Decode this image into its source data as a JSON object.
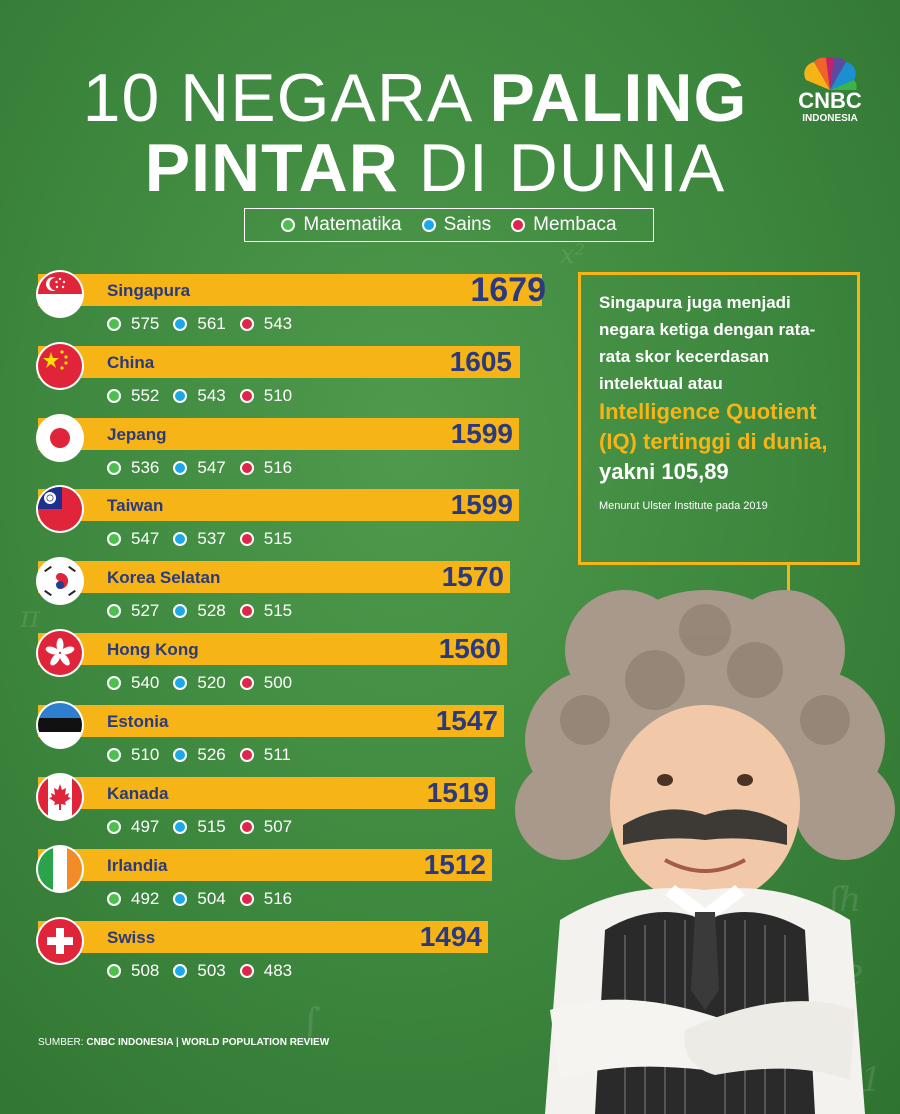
{
  "title": {
    "line1_thin": "10 NEGARA",
    "line1_bold": "PALING",
    "line2_bold": "PINTAR",
    "line2_thin": "DI DUNIA"
  },
  "logo": {
    "brand": "CNBC",
    "sub": "INDONESIA"
  },
  "legend": [
    {
      "label": "Matematika",
      "color": "#4cc04e"
    },
    {
      "label": "Sains",
      "color": "#1ba8e6"
    },
    {
      "label": "Membaca",
      "color": "#e0244a"
    }
  ],
  "countries": [
    {
      "name": "Singapura",
      "total": "1679",
      "math": "575",
      "science": "561",
      "reading": "543",
      "flag": "singapore-flag"
    },
    {
      "name": "China",
      "total": "1605",
      "math": "552",
      "science": "543",
      "reading": "510",
      "flag": "china-flag"
    },
    {
      "name": "Jepang",
      "total": "1599",
      "math": "536",
      "science": "547",
      "reading": "516",
      "flag": "japan-flag"
    },
    {
      "name": "Taiwan",
      "total": "1599",
      "math": "547",
      "science": "537",
      "reading": "515",
      "flag": "taiwan-flag"
    },
    {
      "name": "Korea Selatan",
      "total": "1570",
      "math": "527",
      "science": "528",
      "reading": "515",
      "flag": "south-korea-flag"
    },
    {
      "name": "Hong Kong",
      "total": "1560",
      "math": "540",
      "science": "520",
      "reading": "500",
      "flag": "hong-kong-flag"
    },
    {
      "name": "Estonia",
      "total": "1547",
      "math": "510",
      "science": "526",
      "reading": "511",
      "flag": "estonia-flag"
    },
    {
      "name": "Kanada",
      "total": "1519",
      "math": "497",
      "science": "515",
      "reading": "507",
      "flag": "canada-flag"
    },
    {
      "name": "Irlandia",
      "total": "1512",
      "math": "492",
      "science": "504",
      "reading": "516",
      "flag": "ireland-flag"
    },
    {
      "name": "Swiss",
      "total": "1494",
      "math": "508",
      "science": "503",
      "reading": "483",
      "flag": "switzerland-flag"
    }
  ],
  "callout": {
    "main": "Singapura juga menjadi negara ketiga dengan rata-rata skor kecerdasan intelektual atau",
    "highlight": "Intelligence Quotient (IQ) tertinggi di dunia,",
    "value": "yakni 105,89",
    "note": "Menurut Ulster Institute pada 2019"
  },
  "source": {
    "prefix": "SUMBER:",
    "text": "CNBC INDONESIA | WORLD POPULATION REVIEW"
  },
  "colors": {
    "background": "#3f8a40",
    "bar": "#f6b417",
    "bar_text": "#2a3a7c"
  }
}
